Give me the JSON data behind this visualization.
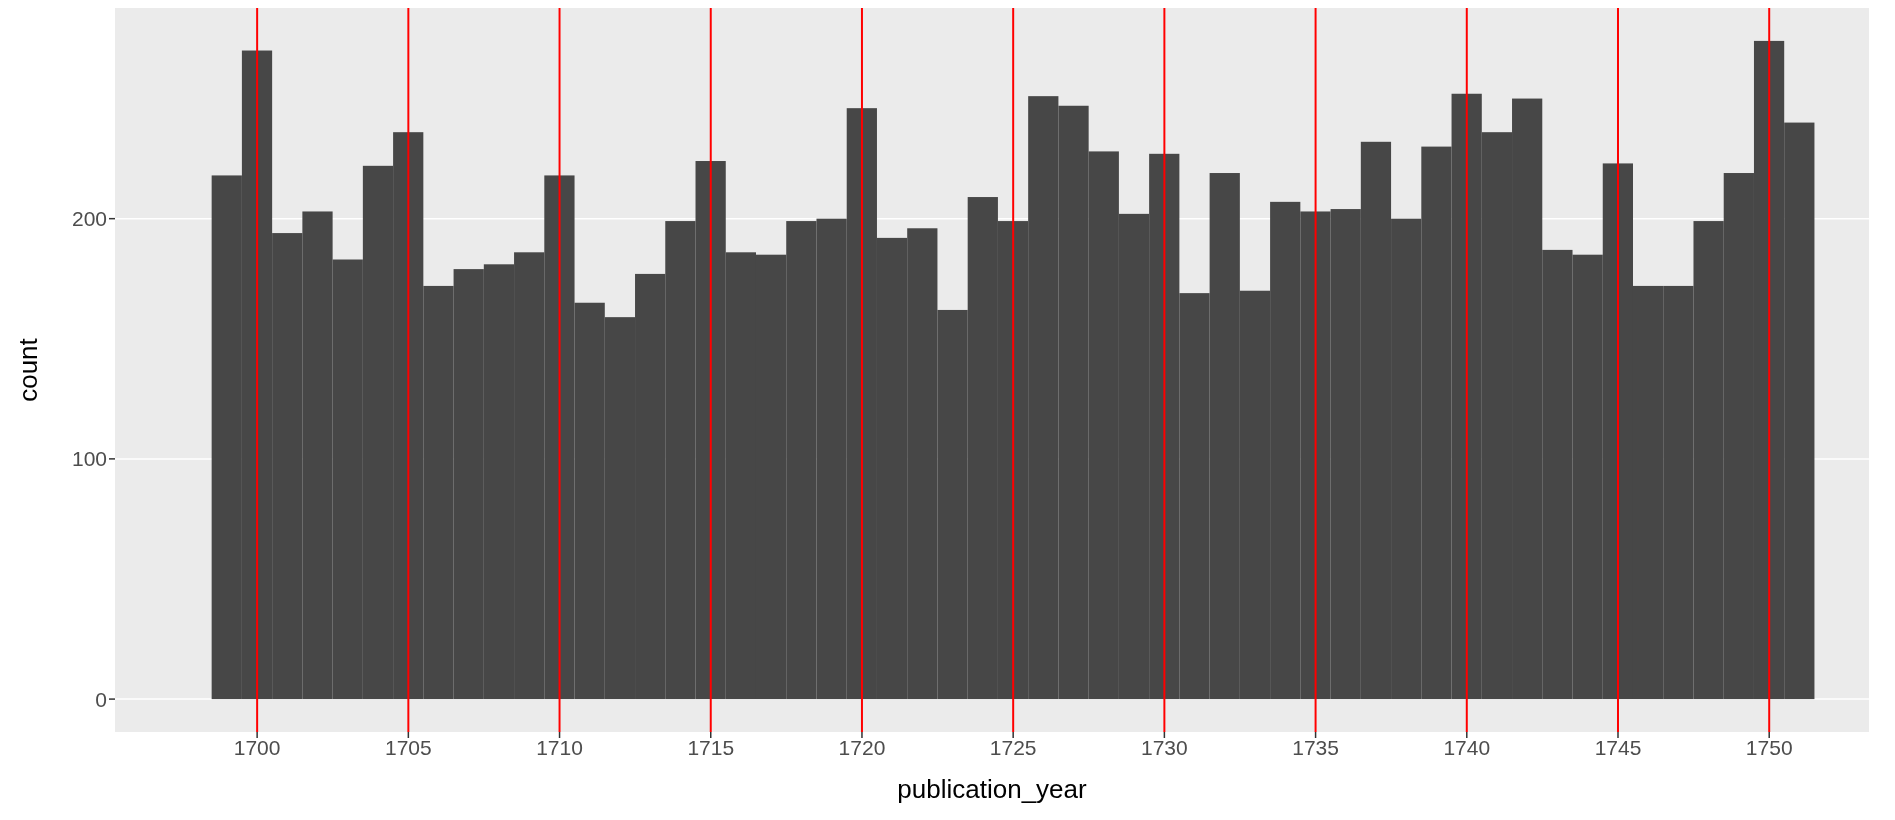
{
  "chart_data": {
    "type": "histogram",
    "xlabel": "publication_year",
    "ylabel": "count",
    "bins": [
      1698.5,
      1699.5,
      1700.5,
      1701.5,
      1702.5,
      1703.5,
      1704.5,
      1705.5,
      1706.5,
      1707.5,
      1708.5,
      1709.5,
      1710.5,
      1711.5,
      1712.5,
      1713.5,
      1714.5,
      1715.5,
      1716.5,
      1717.5,
      1718.5,
      1719.5,
      1720.5,
      1721.5,
      1722.5,
      1723.5,
      1724.5,
      1725.5,
      1726.5,
      1727.5,
      1728.5,
      1729.5,
      1730.5,
      1731.5,
      1732.5,
      1733.5,
      1734.5,
      1735.5,
      1736.5,
      1737.5,
      1738.5,
      1739.5,
      1740.5,
      1741.5,
      1742.5,
      1743.5,
      1744.5,
      1745.5,
      1746.5,
      1747.5,
      1748.5,
      1749.5,
      1750.5,
      1751.5
    ],
    "values": [
      218,
      270,
      194,
      203,
      183,
      222,
      236,
      172,
      179,
      181,
      186,
      218,
      165,
      159,
      177,
      199,
      224,
      186,
      185,
      199,
      200,
      246,
      192,
      196,
      162,
      209,
      199,
      251,
      247,
      228,
      202,
      227,
      169,
      219,
      170,
      207,
      203,
      204,
      232,
      200,
      230,
      252,
      236,
      250,
      187,
      185,
      223,
      172,
      172,
      199,
      219,
      274,
      240
    ],
    "color": "#474747",
    "xlim": [
      1695.3,
      1753.3
    ],
    "xticks": [
      1700,
      1705,
      1710,
      1715,
      1720,
      1725,
      1730,
      1735,
      1740,
      1745,
      1750
    ],
    "ylim": [
      -13.7,
      287.7
    ],
    "yticks": [
      0,
      100,
      200
    ],
    "grid": true,
    "ref_lines": [
      {
        "axis": "x",
        "value": 1700,
        "color": "#ff0000"
      },
      {
        "axis": "x",
        "value": 1705,
        "color": "#ff0000"
      },
      {
        "axis": "x",
        "value": 1710,
        "color": "#ff0000"
      },
      {
        "axis": "x",
        "value": 1715,
        "color": "#ff0000"
      },
      {
        "axis": "x",
        "value": 1720,
        "color": "#ff0000"
      },
      {
        "axis": "x",
        "value": 1725,
        "color": "#ff0000"
      },
      {
        "axis": "x",
        "value": 1730,
        "color": "#ff0000"
      },
      {
        "axis": "x",
        "value": 1735,
        "color": "#ff0000"
      },
      {
        "axis": "x",
        "value": 1740,
        "color": "#ff0000"
      },
      {
        "axis": "x",
        "value": 1745,
        "color": "#ff0000"
      },
      {
        "axis": "x",
        "value": 1750,
        "color": "#ff0000"
      }
    ]
  }
}
